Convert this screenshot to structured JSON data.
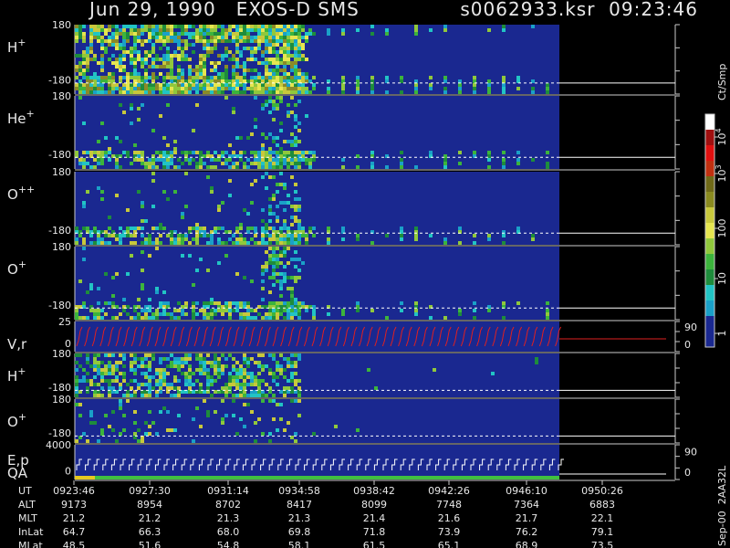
{
  "header": {
    "title": "Jun 29, 1990   EXOS-D SMS",
    "file": "s0062933.ksr  09:23:46"
  },
  "panels": [
    {
      "label": "H",
      "sup": "+",
      "top": "180",
      "bottom": "-180"
    },
    {
      "label": "He",
      "sup": "+",
      "top": "180",
      "bottom": "-180"
    },
    {
      "label": "O",
      "sup": "++",
      "top": "180",
      "bottom": "-180"
    },
    {
      "label": "O",
      "sup": "+",
      "top": "180",
      "bottom": "-180"
    },
    {
      "label": "V,r",
      "top": "25",
      "bottom": "0",
      "right_top": "90",
      "right_bottom": "0"
    },
    {
      "label": "H",
      "sup": "+",
      "top": "180",
      "bottom": "-180"
    },
    {
      "label": "O",
      "sup": "+",
      "top": "180",
      "bottom": "-180"
    },
    {
      "label": "E,p",
      "label2": "QA",
      "top": "4000",
      "bottom": "0",
      "right_top": "90",
      "right_bottom": "0"
    }
  ],
  "colorbar": {
    "unit": "Ct/Smp",
    "labels": [
      {
        "base": "10",
        "sup": "4"
      },
      {
        "base": "10",
        "sup": "3"
      },
      "100",
      "10",
      "1"
    ]
  },
  "table": {
    "rows": [
      {
        "label": "UT",
        "values": [
          "0923:46",
          "0927:30",
          "0931:14",
          "0934:58",
          "0938:42",
          "0942:26",
          "0946:10",
          "0950:26"
        ]
      },
      {
        "label": "ALT",
        "values": [
          "9173",
          "8954",
          "8702",
          "8417",
          "8099",
          "7748",
          "7364",
          "6883"
        ]
      },
      {
        "label": "MLT",
        "values": [
          "21.2",
          "21.2",
          "21.3",
          "21.3",
          "21.4",
          "21.6",
          "21.7",
          "22.1"
        ]
      },
      {
        "label": "InLat",
        "values": [
          "64.7",
          "66.3",
          "68.0",
          "69.8",
          "71.8",
          "73.9",
          "76.2",
          "79.1"
        ]
      },
      {
        "label": "MLat",
        "values": [
          "48.5",
          "51.6",
          "54.8",
          "58.1",
          "61.5",
          "65.1",
          "68.9",
          "73.5"
        ]
      }
    ]
  },
  "footer": "Sep-00  2AA32L"
}
